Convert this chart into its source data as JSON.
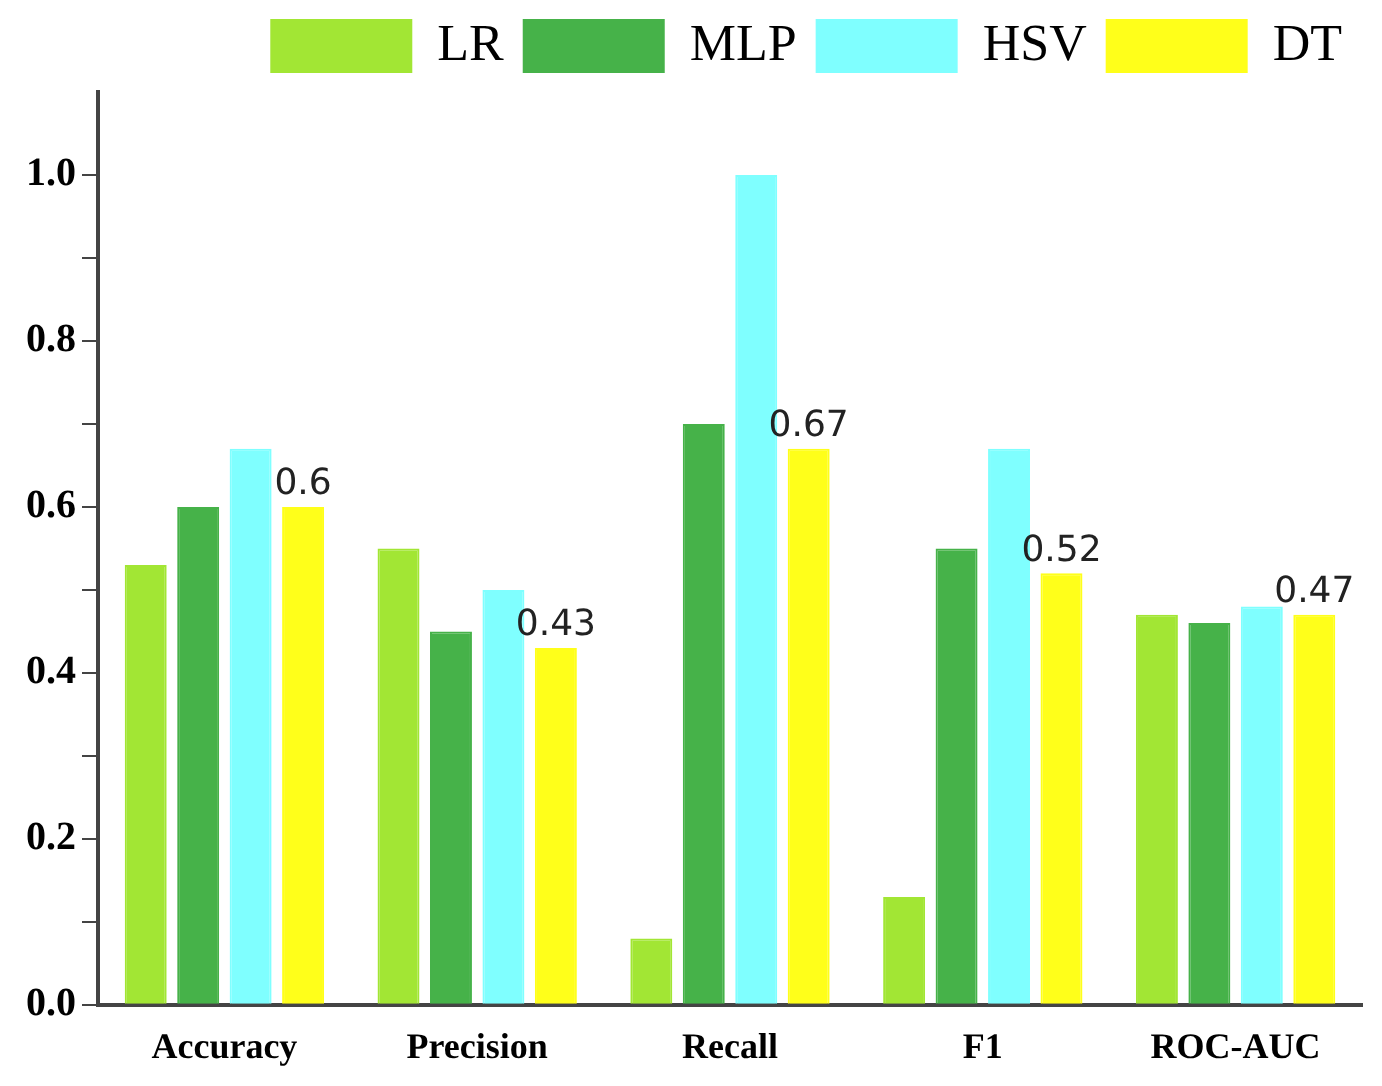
{
  "chart_data": {
    "type": "bar",
    "categories": [
      "Accuracy",
      "Precision",
      "Recall",
      "F1",
      "ROC-AUC"
    ],
    "series": [
      {
        "name": "LR",
        "color": "#a2e634",
        "values": [
          0.53,
          0.55,
          0.08,
          0.13,
          0.47
        ]
      },
      {
        "name": "MLP",
        "color": "#46b249",
        "values": [
          0.6,
          0.45,
          0.7,
          0.55,
          0.46
        ]
      },
      {
        "name": "HSV",
        "color": "#7fffff",
        "values": [
          0.67,
          0.5,
          1.0,
          0.67,
          0.48
        ]
      },
      {
        "name": "DT",
        "color": "#ffff1a",
        "values": [
          0.6,
          0.43,
          0.67,
          0.52,
          0.47
        ],
        "value_labels": [
          "0.6",
          "0.43",
          "0.67",
          "0.52",
          "0.47"
        ]
      }
    ],
    "ylim": [
      0,
      1.1
    ],
    "yticks": [
      {
        "value": 0,
        "label": "0.0"
      },
      {
        "value": 0.1,
        "label": null
      },
      {
        "value": 0.2,
        "label": "0.2"
      },
      {
        "value": 0.3,
        "label": null
      },
      {
        "value": 0.4,
        "label": "0.4"
      },
      {
        "value": 0.5,
        "label": null
      },
      {
        "value": 0.6,
        "label": "0.6"
      },
      {
        "value": 0.7,
        "label": null
      },
      {
        "value": 0.8,
        "label": "0.8"
      },
      {
        "value": 0.9,
        "label": null
      },
      {
        "value": 1.0,
        "label": "1.0"
      }
    ],
    "legend": "top right",
    "grid": false
  }
}
